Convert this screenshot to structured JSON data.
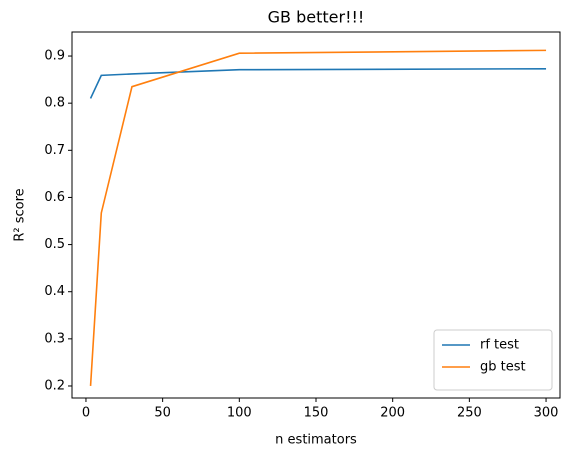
{
  "chart_data": {
    "type": "line",
    "title": "GB better!!!",
    "x_label": "n estimators",
    "y_label": "R² score",
    "x": [
      3,
      10,
      30,
      100,
      300
    ],
    "series": [
      {
        "name": "rf test",
        "color": "#1f77b4",
        "values": [
          0.81,
          0.859,
          0.862,
          0.871,
          0.873
        ]
      },
      {
        "name": "gb test",
        "color": "#ff7f0e",
        "values": [
          0.2,
          0.567,
          0.835,
          0.906,
          0.912
        ]
      }
    ],
    "xlim": [
      -9.1,
      309.1
    ],
    "xticks": [
      0,
      50,
      100,
      150,
      200,
      250,
      300
    ],
    "ylim": [
      0.1745,
      0.951
    ],
    "yticks": [
      0.2,
      0.3,
      0.4,
      0.5,
      0.6,
      0.7,
      0.8,
      0.9
    ],
    "legend": "lower right",
    "grid": false
  }
}
